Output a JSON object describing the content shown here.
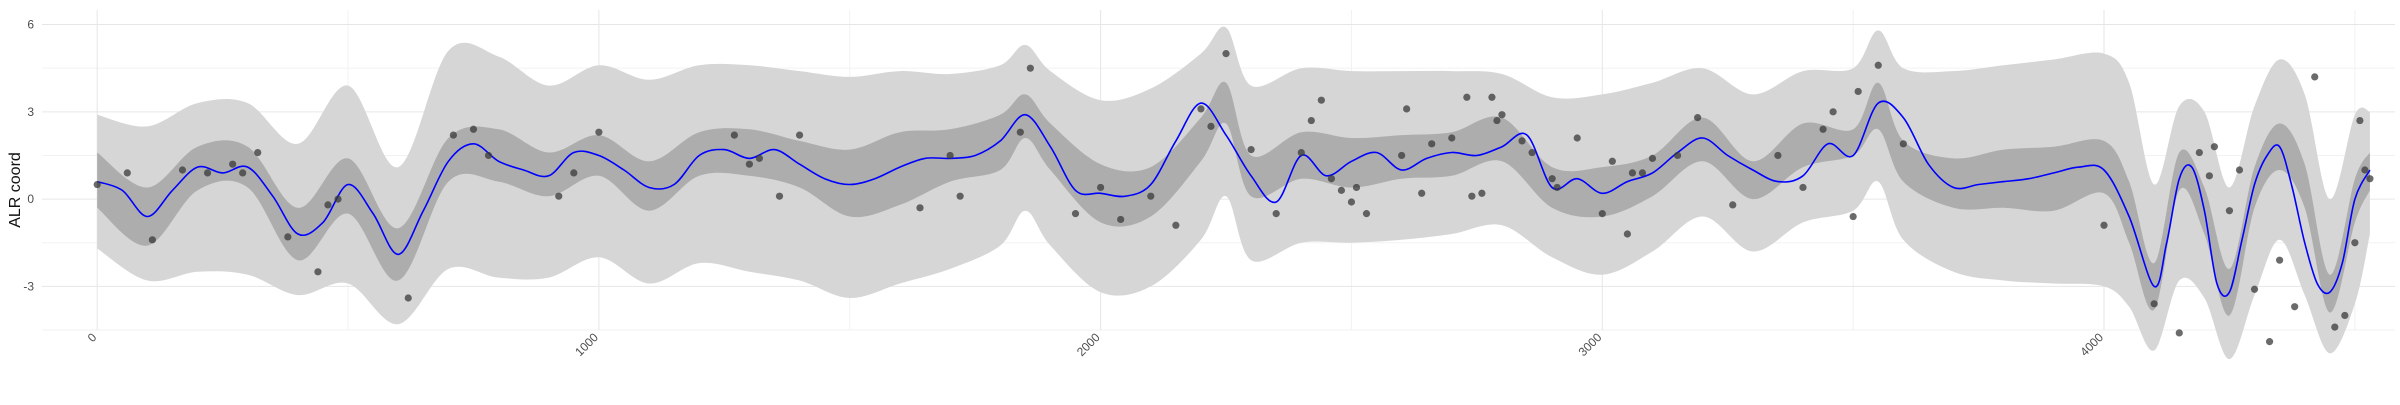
{
  "chart_data": {
    "type": "line",
    "title": "",
    "xlabel": "",
    "ylabel": "ALR coord",
    "xlim": [
      -110,
      4580
    ],
    "ylim": [
      -4.5,
      6.5
    ],
    "x_ticks": [
      0,
      1000,
      2000,
      3000,
      4000
    ],
    "x_tick_labels": [
      "0",
      "1000",
      "2000",
      "3000",
      "4000"
    ],
    "y_ticks": [
      -3,
      0,
      3,
      6
    ],
    "y_tick_labels": [
      "-3",
      "0",
      "3",
      "6"
    ],
    "grid": true,
    "legend": "none",
    "colors": {
      "mean_line": "#0000ff",
      "inner_band": "#adadad",
      "outer_band": "#d6d6d6",
      "points": "#3a3a3a",
      "grid_major": "#e6e6e6",
      "grid_minor": "#f2f2f2"
    },
    "mean_curve": {
      "x": [
        0,
        50,
        100,
        150,
        200,
        250,
        300,
        350,
        400,
        450,
        500,
        550,
        600,
        650,
        700,
        750,
        800,
        850,
        900,
        950,
        1000,
        1050,
        1100,
        1150,
        1200,
        1250,
        1300,
        1350,
        1400,
        1450,
        1500,
        1550,
        1600,
        1650,
        1700,
        1750,
        1800,
        1850,
        1900,
        1950,
        2000,
        2050,
        2100,
        2150,
        2200,
        2250,
        2300,
        2350,
        2400,
        2450,
        2500,
        2550,
        2600,
        2650,
        2700,
        2750,
        2800,
        2850,
        2900,
        2950,
        3000,
        3050,
        3100,
        3150,
        3200,
        3250,
        3300,
        3350,
        3400,
        3450,
        3500,
        3550,
        3600,
        3650,
        3700,
        3750,
        3800,
        3850,
        3900,
        3950,
        4000,
        4050,
        4100,
        4125,
        4150,
        4175,
        4200,
        4225,
        4250,
        4275,
        4300,
        4325,
        4350,
        4375,
        4400,
        4425,
        4450,
        4475,
        4500,
        4530
      ],
      "y": [
        0.6,
        0.3,
        -0.6,
        0.3,
        1.1,
        0.9,
        1.1,
        0.1,
        -1.2,
        -0.8,
        0.5,
        -0.5,
        -1.9,
        -0.4,
        1.3,
        1.9,
        1.3,
        1.0,
        0.8,
        1.6,
        1.5,
        1.0,
        0.4,
        0.5,
        1.5,
        1.7,
        1.4,
        1.7,
        1.2,
        0.7,
        0.5,
        0.7,
        1.1,
        1.4,
        1.4,
        1.5,
        2.0,
        2.9,
        1.8,
        0.3,
        0.2,
        0.1,
        0.5,
        2.0,
        3.3,
        2.2,
        0.8,
        -0.1,
        1.5,
        0.8,
        1.3,
        1.6,
        1.0,
        1.4,
        1.6,
        1.5,
        1.8,
        2.2,
        0.4,
        0.7,
        0.2,
        0.6,
        0.9,
        1.6,
        2.1,
        1.5,
        1.0,
        0.6,
        0.8,
        1.9,
        1.5,
        3.3,
        2.8,
        1.2,
        0.4,
        0.5,
        0.6,
        0.7,
        0.9,
        1.1,
        1.0,
        -0.6,
        -3.0,
        -1.5,
        0.7,
        1.1,
        -0.4,
        -2.9,
        -3.2,
        -1.4,
        0.5,
        1.5,
        1.8,
        0.4,
        -1.5,
        -2.9,
        -3.2,
        -2.2,
        0.0,
        1.0
      ]
    },
    "confidence_band_inner": {
      "x": [
        0,
        100,
        200,
        300,
        400,
        500,
        600,
        700,
        800,
        900,
        1000,
        1100,
        1200,
        1300,
        1400,
        1500,
        1600,
        1700,
        1800,
        1850,
        1900,
        2000,
        2100,
        2200,
        2250,
        2300,
        2400,
        2500,
        2600,
        2700,
        2800,
        2900,
        3000,
        3100,
        3200,
        3300,
        3400,
        3500,
        3550,
        3600,
        3700,
        3800,
        3900,
        4000,
        4050,
        4100,
        4150,
        4200,
        4250,
        4300,
        4350,
        4400,
        4450,
        4500,
        4530
      ],
      "lower": [
        -0.3,
        -1.6,
        0.3,
        0.4,
        -2.1,
        -0.5,
        -2.8,
        0.6,
        0.6,
        0.1,
        0.8,
        -0.4,
        0.8,
        0.8,
        0.4,
        -0.6,
        -0.2,
        0.6,
        1.0,
        2.1,
        1.0,
        -0.8,
        -0.6,
        1.3,
        2.6,
        0.1,
        0.7,
        0.4,
        0.7,
        0.8,
        1.3,
        -0.3,
        -0.6,
        0.1,
        1.3,
        0.0,
        1.1,
        1.5,
        2.4,
        0.6,
        -0.3,
        -0.3,
        -0.4,
        0.2,
        -1.5,
        -3.8,
        0.3,
        -1.2,
        -4.0,
        -0.3,
        1.0,
        -0.3,
        -3.9,
        -0.8,
        0.3
      ],
      "upper": [
        1.6,
        0.4,
        1.8,
        1.8,
        -0.3,
        1.4,
        -1.0,
        2.1,
        2.4,
        1.6,
        2.2,
        1.3,
        2.3,
        2.4,
        2.0,
        1.7,
        2.3,
        2.4,
        2.9,
        3.6,
        2.6,
        1.2,
        1.1,
        2.8,
        4.0,
        1.5,
        2.3,
        2.1,
        2.2,
        2.3,
        2.8,
        1.1,
        1.1,
        1.5,
        2.8,
        1.3,
        2.6,
        2.4,
        4.0,
        2.0,
        1.4,
        1.7,
        1.8,
        2.0,
        0.6,
        -2.2,
        1.6,
        0.4,
        -2.4,
        1.1,
        2.6,
        1.2,
        -2.6,
        0.7,
        1.6
      ]
    },
    "confidence_band_outer": {
      "x": [
        0,
        100,
        200,
        300,
        400,
        500,
        600,
        700,
        800,
        900,
        1000,
        1100,
        1200,
        1300,
        1400,
        1500,
        1600,
        1700,
        1800,
        1850,
        1900,
        2000,
        2100,
        2200,
        2250,
        2300,
        2400,
        2500,
        2600,
        2700,
        2800,
        2900,
        3000,
        3100,
        3200,
        3300,
        3400,
        3500,
        3550,
        3600,
        3700,
        3800,
        3900,
        4000,
        4050,
        4100,
        4150,
        4200,
        4250,
        4300,
        4350,
        4400,
        4450,
        4500,
        4530
      ],
      "lower": [
        -1.7,
        -2.8,
        -2.5,
        -2.6,
        -3.3,
        -2.9,
        -4.3,
        -2.4,
        -2.7,
        -2.7,
        -2.0,
        -2.9,
        -2.2,
        -2.5,
        -2.8,
        -3.4,
        -2.9,
        -2.4,
        -1.6,
        -0.4,
        -1.6,
        -3.2,
        -3.0,
        -1.4,
        0.1,
        -2.1,
        -1.5,
        -1.5,
        -1.4,
        -1.2,
        -0.9,
        -2.0,
        -2.6,
        -1.8,
        -0.6,
        -1.8,
        -0.8,
        -0.4,
        0.6,
        -1.4,
        -2.5,
        -2.8,
        -2.9,
        -3.0,
        -3.7,
        -5.2,
        -2.8,
        -3.4,
        -5.5,
        -3.3,
        -1.4,
        -3.3,
        -5.3,
        -3.6,
        -1.2
      ],
      "upper": [
        2.9,
        2.5,
        3.3,
        3.3,
        1.9,
        3.9,
        1.1,
        5.1,
        4.9,
        3.9,
        4.6,
        4.1,
        4.6,
        4.6,
        4.4,
        4.2,
        4.4,
        4.3,
        4.6,
        5.3,
        4.4,
        3.4,
        3.8,
        5.0,
        5.9,
        3.9,
        4.5,
        4.4,
        4.4,
        4.4,
        4.3,
        3.5,
        3.6,
        4.0,
        4.5,
        3.6,
        4.4,
        4.5,
        5.8,
        4.5,
        4.4,
        4.6,
        4.8,
        5.0,
        4.0,
        0.5,
        3.2,
        3.0,
        0.4,
        3.2,
        4.8,
        3.6,
        0.0,
        2.9,
        3.0
      ]
    },
    "points": {
      "x": [
        0,
        60,
        110,
        170,
        220,
        270,
        290,
        320,
        380,
        440,
        460,
        480,
        620,
        710,
        750,
        780,
        920,
        950,
        1000,
        1270,
        1300,
        1320,
        1360,
        1400,
        1640,
        1700,
        1720,
        1840,
        1860,
        1950,
        2000,
        2040,
        2100,
        2150,
        2200,
        2220,
        2250,
        2300,
        2350,
        2400,
        2420,
        2440,
        2460,
        2480,
        2500,
        2510,
        2530,
        2600,
        2610,
        2640,
        2660,
        2700,
        2730,
        2740,
        2760,
        2780,
        2790,
        2800,
        2840,
        2860,
        2900,
        2910,
        2950,
        3000,
        3020,
        3050,
        3060,
        3080,
        3100,
        3150,
        3190,
        3260,
        3350,
        3400,
        3440,
        3460,
        3500,
        3510,
        3550,
        3600,
        4000,
        4100,
        4150,
        4190,
        4210,
        4220,
        4250,
        4270,
        4300,
        4330,
        4350,
        4380,
        4420,
        4460,
        4480,
        4500,
        4510,
        4520,
        4530
      ],
      "y": [
        0.5,
        0.9,
        -1.4,
        1.0,
        0.9,
        1.2,
        0.9,
        1.6,
        -1.3,
        -2.5,
        -0.2,
        0.0,
        -3.4,
        2.2,
        2.4,
        1.5,
        0.1,
        0.9,
        2.3,
        2.2,
        1.2,
        1.4,
        0.1,
        2.2,
        -0.3,
        1.5,
        0.1,
        2.3,
        4.5,
        -0.5,
        0.4,
        -0.7,
        0.1,
        -0.9,
        3.1,
        2.5,
        5.0,
        1.7,
        -0.5,
        1.6,
        2.7,
        3.4,
        0.7,
        0.3,
        -0.1,
        0.4,
        -0.5,
        1.5,
        3.1,
        0.2,
        1.9,
        2.1,
        3.5,
        0.1,
        0.2,
        3.5,
        2.7,
        2.9,
        2.0,
        1.6,
        0.7,
        0.4,
        2.1,
        -0.5,
        1.3,
        -1.2,
        0.9,
        0.9,
        1.4,
        1.5,
        2.8,
        -0.2,
        1.5,
        0.4,
        2.4,
        3.0,
        -0.6,
        3.7,
        4.6,
        1.9,
        -0.9,
        -3.6,
        -4.6,
        1.6,
        0.8,
        1.8,
        -0.4,
        1.0,
        -3.1,
        -4.9,
        -2.1,
        -3.7,
        4.2,
        -4.4,
        -4.0,
        -1.5,
        2.7,
        1.0,
        0.7
      ]
    }
  }
}
